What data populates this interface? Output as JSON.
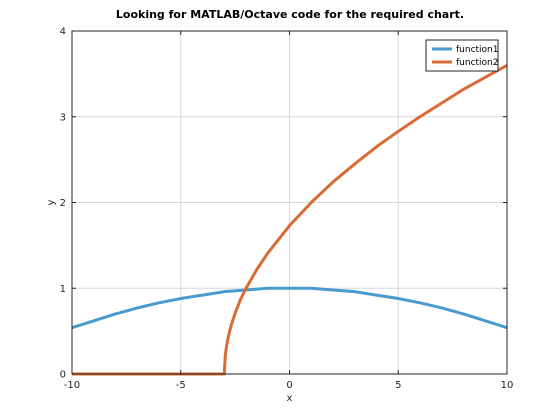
{
  "chart_data": {
    "type": "line",
    "title": "Looking for MATLAB/Octave code for the required chart.",
    "xlabel": "x",
    "ylabel": "y",
    "xlim": [
      -10,
      10
    ],
    "ylim": [
      0,
      4
    ],
    "xticks": [
      -10,
      -5,
      0,
      5,
      10
    ],
    "yticks": [
      0,
      1,
      2,
      3,
      4
    ],
    "grid": true,
    "legend": {
      "position": "top-right"
    },
    "series": [
      {
        "name": "function1",
        "color": "#4a9acd",
        "x": [
          -10,
          -9,
          -8,
          -7,
          -6,
          -5,
          -4,
          -3,
          -2,
          -1,
          0,
          1,
          2,
          3,
          4,
          5,
          6,
          7,
          8,
          9,
          10
        ],
        "y": [
          0.54,
          0.62,
          0.7,
          0.77,
          0.83,
          0.88,
          0.92,
          0.96,
          0.98,
          1.0,
          1.0,
          1.0,
          0.98,
          0.96,
          0.92,
          0.88,
          0.83,
          0.77,
          0.7,
          0.62,
          0.54
        ]
      },
      {
        "name": "function2",
        "color": "#d96b35",
        "x": [
          -10,
          -8,
          -6,
          -4,
          -3.05,
          -3,
          -2.95,
          -2.9,
          -2.8,
          -2.7,
          -2.5,
          -2.25,
          -2,
          -1.5,
          -1,
          0,
          1,
          2,
          3,
          4,
          5,
          6,
          7,
          8,
          9,
          10
        ],
        "y": [
          0,
          0,
          0,
          0,
          0,
          0,
          0.22,
          0.32,
          0.45,
          0.55,
          0.71,
          0.87,
          1.0,
          1.22,
          1.41,
          1.73,
          2.0,
          2.24,
          2.45,
          2.65,
          2.83,
          3.0,
          3.16,
          3.32,
          3.46,
          3.6
        ]
      }
    ]
  }
}
